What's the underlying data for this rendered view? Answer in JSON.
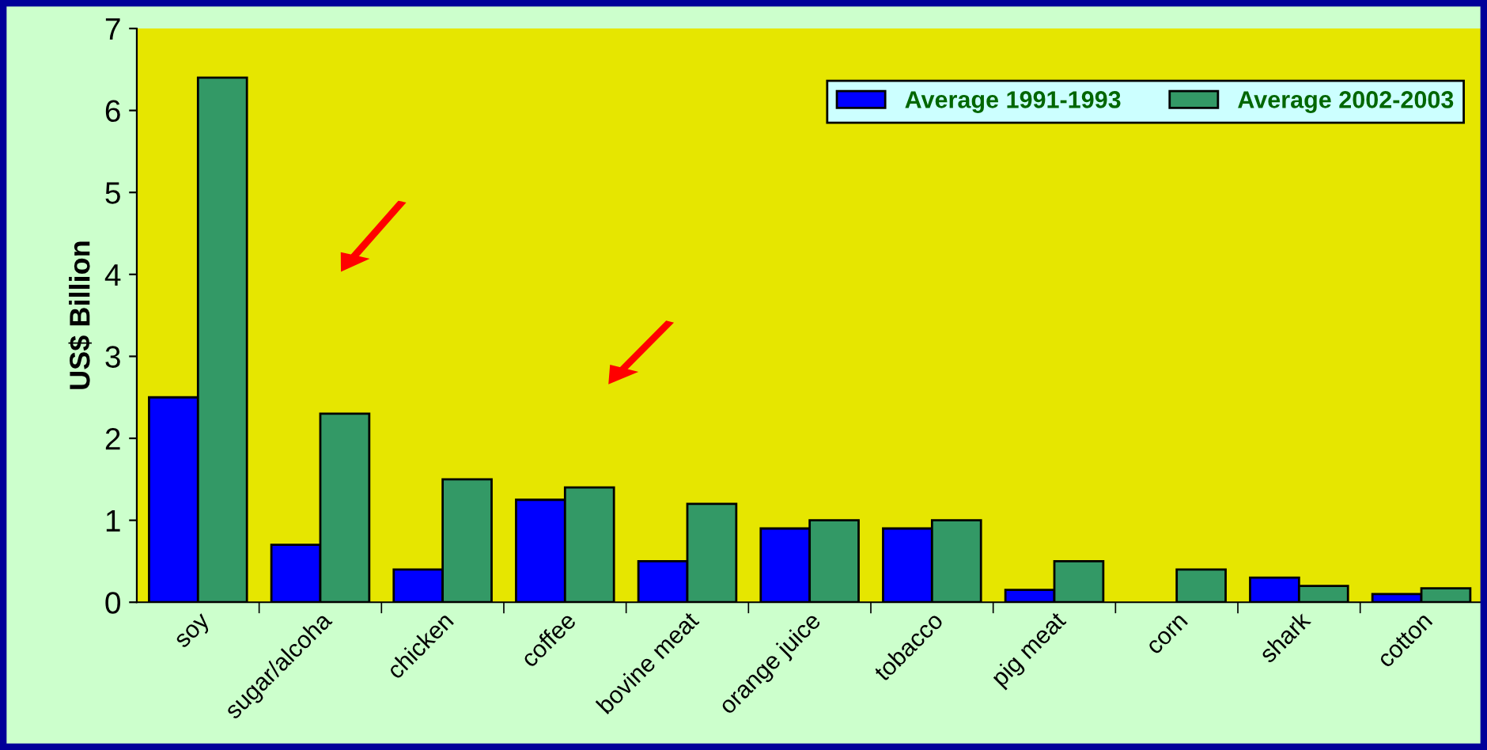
{
  "chart_data": {
    "type": "bar",
    "ylabel": "US$ Billion",
    "categories": [
      "soy",
      "sugar/alcoha",
      "chicken",
      "coffee",
      "bovine meat",
      "orange juice",
      "tobacco",
      "pig meat",
      "corn",
      "shark",
      "cotton"
    ],
    "series": [
      {
        "name": "Average 1991-1993",
        "color": "#0000ff",
        "values": [
          2.5,
          0.7,
          0.4,
          1.25,
          0.5,
          0.9,
          0.9,
          0.15,
          null,
          0.3,
          0.1
        ]
      },
      {
        "name": "Average 2002-2003",
        "color": "#339966",
        "values": [
          6.4,
          2.3,
          1.5,
          1.4,
          1.2,
          1.0,
          1.0,
          0.5,
          0.4,
          0.2,
          0.17
        ]
      }
    ],
    "ylim": [
      0,
      7
    ],
    "yticks": [
      0,
      1,
      2,
      3,
      4,
      5,
      6,
      7
    ],
    "grid": false,
    "legend": "top right"
  }
}
